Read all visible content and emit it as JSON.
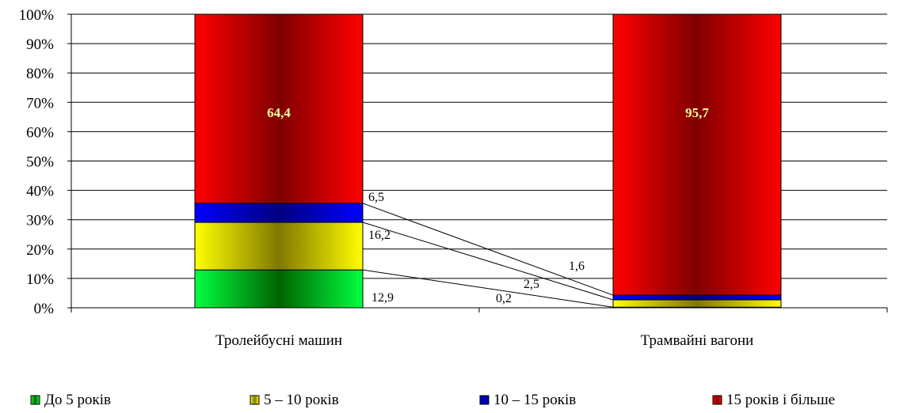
{
  "chart_data": {
    "type": "bar",
    "stacked": "percent",
    "categories": [
      "Тролейбусні машин",
      "Трамвайні вагони"
    ],
    "series": [
      {
        "name": "До 5 років",
        "values": [
          12.9,
          0.2
        ],
        "color": "#00c800"
      },
      {
        "name": "5 – 10 років",
        "values": [
          16.2,
          2.5
        ],
        "color": "#ffff00"
      },
      {
        "name": "10 – 15 років",
        "values": [
          6.5,
          1.6
        ],
        "color": "#0000ff"
      },
      {
        "name": "15 років і більше",
        "values": [
          64.4,
          95.7
        ],
        "color": "#ff0000"
      }
    ],
    "y_ticks": [
      "0%",
      "10%",
      "20%",
      "30%",
      "40%",
      "50%",
      "60%",
      "70%",
      "80%",
      "90%",
      "100%"
    ],
    "ylim": [
      0,
      100
    ],
    "grid": true,
    "legend": "bottom",
    "data_labels": {
      "category_0": [
        "12,9",
        "16,2",
        "6,5",
        "64,4"
      ],
      "category_1": [
        "0,2",
        "2,5",
        "1,6",
        "95,7"
      ]
    }
  }
}
